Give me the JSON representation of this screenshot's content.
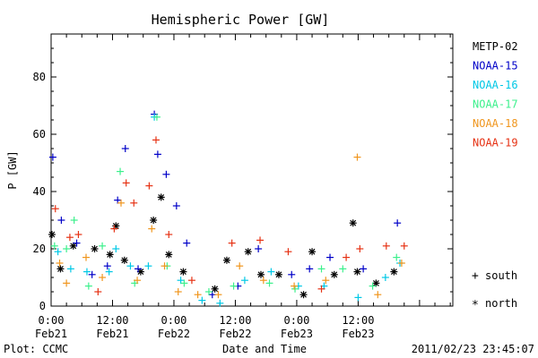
{
  "chart_data": {
    "type": "scatter",
    "title": "Hemispheric Power [GW]",
    "xlabel": "Date and Time",
    "ylabel": "P [GW]",
    "ylim": [
      0,
      95
    ],
    "xlim": [
      "2011-02-21 00:00",
      "2011-02-24 06:30"
    ],
    "y_ticks": [
      "0",
      "20",
      "40",
      "60",
      "80"
    ],
    "x_ticks": [
      {
        "time": "2011-02-21 00:00",
        "top": "0:00",
        "bottom": "Feb21"
      },
      {
        "time": "2011-02-21 12:00",
        "top": "12:00",
        "bottom": "Feb21"
      },
      {
        "time": "2011-02-22 00:00",
        "top": "0:00",
        "bottom": "Feb22"
      },
      {
        "time": "2011-02-22 12:00",
        "top": "12:00",
        "bottom": "Feb22"
      },
      {
        "time": "2011-02-23 00:00",
        "top": "0:00",
        "bottom": "Feb23"
      },
      {
        "time": "2011-02-23 12:00",
        "top": "12:00",
        "bottom": "Feb23"
      }
    ],
    "legend_position": "right",
    "series": [
      {
        "name": "METP-02",
        "color": "#000000",
        "hemisphere": "north",
        "points": [
          [
            "2011-02-21 00:10",
            25
          ],
          [
            "2011-02-21 01:50",
            13
          ],
          [
            "2011-02-21 04:20",
            21
          ],
          [
            "2011-02-21 08:30",
            20
          ],
          [
            "2011-02-21 11:30",
            18
          ],
          [
            "2011-02-21 12:40",
            28
          ],
          [
            "2011-02-21 14:20",
            16
          ],
          [
            "2011-02-21 17:30",
            12
          ],
          [
            "2011-02-21 20:00",
            30
          ],
          [
            "2011-02-21 21:30",
            38
          ],
          [
            "2011-02-21 23:00",
            18
          ],
          [
            "2011-02-22 01:50",
            12
          ],
          [
            "2011-02-22 08:00",
            6
          ],
          [
            "2011-02-22 10:20",
            16
          ],
          [
            "2011-02-22 14:30",
            19
          ],
          [
            "2011-02-22 17:00",
            11
          ],
          [
            "2011-02-22 20:30",
            11
          ],
          [
            "2011-02-23 01:20",
            4
          ],
          [
            "2011-02-23 03:00",
            19
          ],
          [
            "2011-02-23 07:20",
            11
          ],
          [
            "2011-02-23 11:00",
            29
          ],
          [
            "2011-02-23 11:50",
            12
          ],
          [
            "2011-02-23 15:30",
            8
          ],
          [
            "2011-02-23 19:00",
            12
          ]
        ]
      },
      {
        "name": "NOAA-15",
        "color": "#0000c8",
        "hemisphere": "south",
        "points": [
          [
            "2011-02-21 00:20",
            52
          ],
          [
            "2011-02-21 02:00",
            30
          ],
          [
            "2011-02-21 05:00",
            22
          ],
          [
            "2011-02-21 08:00",
            11
          ],
          [
            "2011-02-21 11:00",
            14
          ],
          [
            "2011-02-21 13:00",
            37
          ],
          [
            "2011-02-21 14:30",
            55
          ],
          [
            "2011-02-21 17:00",
            13
          ],
          [
            "2011-02-21 20:10",
            67
          ],
          [
            "2011-02-21 20:50",
            53
          ],
          [
            "2011-02-21 22:30",
            46
          ],
          [
            "2011-02-22 00:30",
            35
          ],
          [
            "2011-02-22 02:30",
            22
          ],
          [
            "2011-02-22 07:30",
            4
          ],
          [
            "2011-02-22 12:30",
            7
          ],
          [
            "2011-02-22 16:30",
            20
          ],
          [
            "2011-02-22 23:00",
            11
          ],
          [
            "2011-02-23 02:30",
            13
          ],
          [
            "2011-02-23 06:30",
            17
          ],
          [
            "2011-02-23 13:00",
            13
          ],
          [
            "2011-02-23 19:40",
            29
          ]
        ]
      },
      {
        "name": "NOAA-16",
        "color": "#00c8e6",
        "hemisphere": "south",
        "points": [
          [
            "2011-02-21 01:20",
            19
          ],
          [
            "2011-02-21 03:50",
            13
          ],
          [
            "2011-02-21 07:00",
            12
          ],
          [
            "2011-02-21 11:20",
            12
          ],
          [
            "2011-02-21 12:40",
            20
          ],
          [
            "2011-02-21 15:30",
            14
          ],
          [
            "2011-02-21 19:00",
            14
          ],
          [
            "2011-02-21 20:10",
            66
          ],
          [
            "2011-02-22 01:20",
            9
          ],
          [
            "2011-02-22 05:30",
            2
          ],
          [
            "2011-02-22 09:00",
            1
          ],
          [
            "2011-02-22 13:50",
            9
          ],
          [
            "2011-02-22 19:00",
            12
          ],
          [
            "2011-02-23 00:20",
            7
          ],
          [
            "2011-02-23 05:20",
            7
          ],
          [
            "2011-02-23 12:00",
            3
          ],
          [
            "2011-02-23 17:20",
            10
          ],
          [
            "2011-02-23 20:10",
            15
          ]
        ]
      },
      {
        "name": "NOAA-17",
        "color": "#3cf08c",
        "hemisphere": "south",
        "points": [
          [
            "2011-02-21 00:40",
            21
          ],
          [
            "2011-02-21 03:00",
            20
          ],
          [
            "2011-02-21 04:30",
            30
          ],
          [
            "2011-02-21 07:20",
            7
          ],
          [
            "2011-02-21 10:00",
            21
          ],
          [
            "2011-02-21 13:30",
            47
          ],
          [
            "2011-02-21 16:20",
            8
          ],
          [
            "2011-02-21 20:40",
            66
          ],
          [
            "2011-02-21 22:40",
            14
          ],
          [
            "2011-02-22 02:00",
            8
          ],
          [
            "2011-02-22 06:50",
            5
          ],
          [
            "2011-02-22 11:40",
            7
          ],
          [
            "2011-02-22 18:40",
            8
          ],
          [
            "2011-02-22 23:40",
            6
          ],
          [
            "2011-02-23 04:50",
            13
          ],
          [
            "2011-02-23 09:00",
            13
          ],
          [
            "2011-02-23 14:50",
            7
          ],
          [
            "2011-02-23 19:30",
            17
          ]
        ]
      },
      {
        "name": "NOAA-18",
        "color": "#f0961e",
        "hemisphere": "south",
        "points": [
          [
            "2011-02-21 01:40",
            15
          ],
          [
            "2011-02-21 03:00",
            8
          ],
          [
            "2011-02-21 06:50",
            17
          ],
          [
            "2011-02-21 10:00",
            10
          ],
          [
            "2011-02-21 13:40",
            36
          ],
          [
            "2011-02-21 16:50",
            9
          ],
          [
            "2011-02-21 19:40",
            27
          ],
          [
            "2011-02-21 22:10",
            14
          ],
          [
            "2011-02-22 00:50",
            5
          ],
          [
            "2011-02-22 04:40",
            4
          ],
          [
            "2011-02-22 08:40",
            4
          ],
          [
            "2011-02-22 12:50",
            14
          ],
          [
            "2011-02-22 17:30",
            9
          ],
          [
            "2011-02-22 23:30",
            7
          ],
          [
            "2011-02-23 05:40",
            9
          ],
          [
            "2011-02-23 11:50",
            52
          ],
          [
            "2011-02-23 15:50",
            4
          ],
          [
            "2011-02-23 20:30",
            15
          ]
        ]
      },
      {
        "name": "NOAA-19",
        "color": "#e63214",
        "hemisphere": "south",
        "points": [
          [
            "2011-02-21 00:50",
            34
          ],
          [
            "2011-02-21 03:40",
            24
          ],
          [
            "2011-02-21 05:20",
            25
          ],
          [
            "2011-02-21 09:10",
            5
          ],
          [
            "2011-02-21 12:20",
            27
          ],
          [
            "2011-02-21 14:40",
            43
          ],
          [
            "2011-02-21 16:10",
            36
          ],
          [
            "2011-02-21 19:10",
            42
          ],
          [
            "2011-02-21 20:30",
            58
          ],
          [
            "2011-02-21 23:00",
            25
          ],
          [
            "2011-02-22 03:30",
            9
          ],
          [
            "2011-02-22 11:20",
            22
          ],
          [
            "2011-02-22 16:50",
            23
          ],
          [
            "2011-02-22 22:20",
            19
          ],
          [
            "2011-02-23 04:50",
            6
          ],
          [
            "2011-02-23 09:40",
            17
          ],
          [
            "2011-02-23 12:20",
            20
          ],
          [
            "2011-02-23 17:30",
            21
          ],
          [
            "2011-02-23 21:00",
            21
          ]
        ]
      }
    ],
    "hemisphere_legend": {
      "south_symbol": "+",
      "south_label": "south",
      "north_symbol": "*",
      "north_label": "north"
    }
  },
  "footer": {
    "left": "Plot: CCMC",
    "right": "2011/02/23 23:45:07"
  }
}
